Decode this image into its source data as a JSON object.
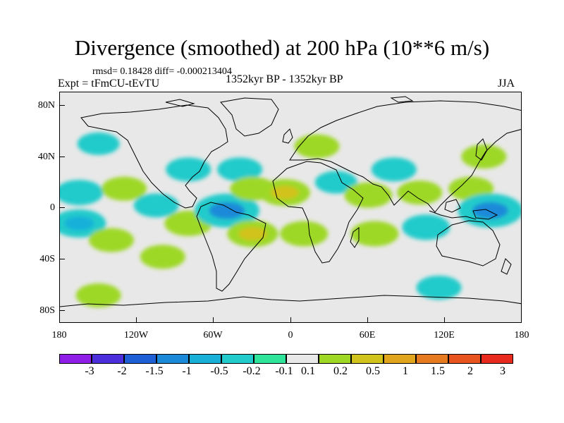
{
  "title": "Divergence (smoothed) at 200 hPa (10**6 m/s)",
  "stats": "rmsd= 0.18428 diff= -0.000213404",
  "experiment": "Expt = tFmCU-tEvTU",
  "period": "1352kyr BP - 1352kyr BP",
  "season": "JJA",
  "map": {
    "lat_ticks": [
      "80N",
      "40N",
      "0",
      "40S",
      "80S"
    ],
    "lon_ticks": [
      "180",
      "120W",
      "60W",
      "0",
      "60E",
      "120E",
      "180"
    ],
    "background_color": "#e8e8e8"
  },
  "colorbar": {
    "labels": [
      "-3",
      "-2",
      "-1.5",
      "-1",
      "-0.5",
      "-0.2",
      "-0.1",
      "0.1",
      "0.2",
      "0.5",
      "1",
      "1.5",
      "2",
      "3"
    ],
    "colors": [
      "#8f1ee6",
      "#4d2edb",
      "#1e5fd6",
      "#1a8ad8",
      "#19b0d8",
      "#22cbcb",
      "#2ee39a",
      "#e8e8e8",
      "#9ed825",
      "#d2c21c",
      "#e0a51c",
      "#e57a1e",
      "#e8541e",
      "#e82a1e"
    ]
  },
  "chart_data": {
    "type": "heatmap",
    "variable": "Divergence (smoothed) at 200 hPa",
    "units": "10**6 m/s",
    "levels": [
      -3,
      -2,
      -1.5,
      -1,
      -0.5,
      -0.2,
      -0.1,
      0.1,
      0.2,
      0.5,
      1,
      1.5,
      2,
      3
    ],
    "lon_range": [
      -180,
      180
    ],
    "lat_range": [
      -90,
      90
    ],
    "features": [
      {
        "lon": -165,
        "lat": 12,
        "value": -0.4
      },
      {
        "lon": -165,
        "lat": -12,
        "value": -0.6
      },
      {
        "lon": -140,
        "lat": -25,
        "value": 0.3
      },
      {
        "lon": -150,
        "lat": 50,
        "value": -0.2
      },
      {
        "lon": -130,
        "lat": 15,
        "value": 0.3
      },
      {
        "lon": -100,
        "lat": -38,
        "value": 0.3
      },
      {
        "lon": -105,
        "lat": 2,
        "value": -0.3
      },
      {
        "lon": -80,
        "lat": 30,
        "value": -0.3
      },
      {
        "lon": -40,
        "lat": 30,
        "value": -0.3
      },
      {
        "lon": -80,
        "lat": -12,
        "value": 0.4
      },
      {
        "lon": -50,
        "lat": -2,
        "value": -1.0
      },
      {
        "lon": -30,
        "lat": 15,
        "value": 0.3
      },
      {
        "lon": -30,
        "lat": -20,
        "value": 0.5
      },
      {
        "lon": -5,
        "lat": 12,
        "value": 0.5
      },
      {
        "lon": 10,
        "lat": -20,
        "value": 0.4
      },
      {
        "lon": 20,
        "lat": 48,
        "value": 0.3
      },
      {
        "lon": 35,
        "lat": 20,
        "value": -0.2
      },
      {
        "lon": 60,
        "lat": 10,
        "value": 0.4
      },
      {
        "lon": 65,
        "lat": -20,
        "value": 0.4
      },
      {
        "lon": 80,
        "lat": 30,
        "value": -0.3
      },
      {
        "lon": 100,
        "lat": 12,
        "value": 0.3
      },
      {
        "lon": 105,
        "lat": -15,
        "value": -0.4
      },
      {
        "lon": 140,
        "lat": 15,
        "value": 0.3
      },
      {
        "lon": 155,
        "lat": -2,
        "value": -1.0
      },
      {
        "lon": 150,
        "lat": 40,
        "value": 0.3
      },
      {
        "lon": 115,
        "lat": -62,
        "value": -0.3
      },
      {
        "lon": -150,
        "lat": -68,
        "value": 0.3
      }
    ]
  }
}
